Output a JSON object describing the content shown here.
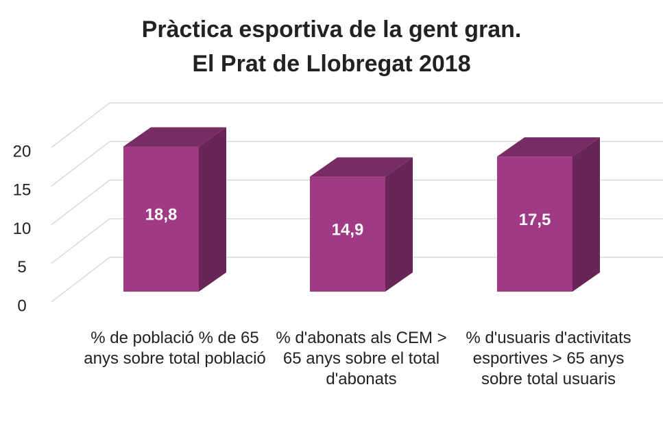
{
  "chart_data": {
    "type": "bar3d",
    "title": "Pràctica esportiva de la gent gran.\nEl Prat de Llobregat 2018",
    "categories": [
      "% de població % de 65 anys sobre total població",
      "% d'abonats als CEM > 65 anys sobre el total d'abonats",
      "% d'usuaris d'activitats esportives > 65 anys sobre total usuaris"
    ],
    "values": [
      18.8,
      14.9,
      17.5
    ],
    "value_labels": [
      "18,8",
      "14,9",
      "17,5"
    ],
    "color": "#a03a85",
    "ylim": [
      0,
      20
    ],
    "yticks": [
      0,
      5,
      10,
      15,
      20
    ],
    "grid": true
  }
}
